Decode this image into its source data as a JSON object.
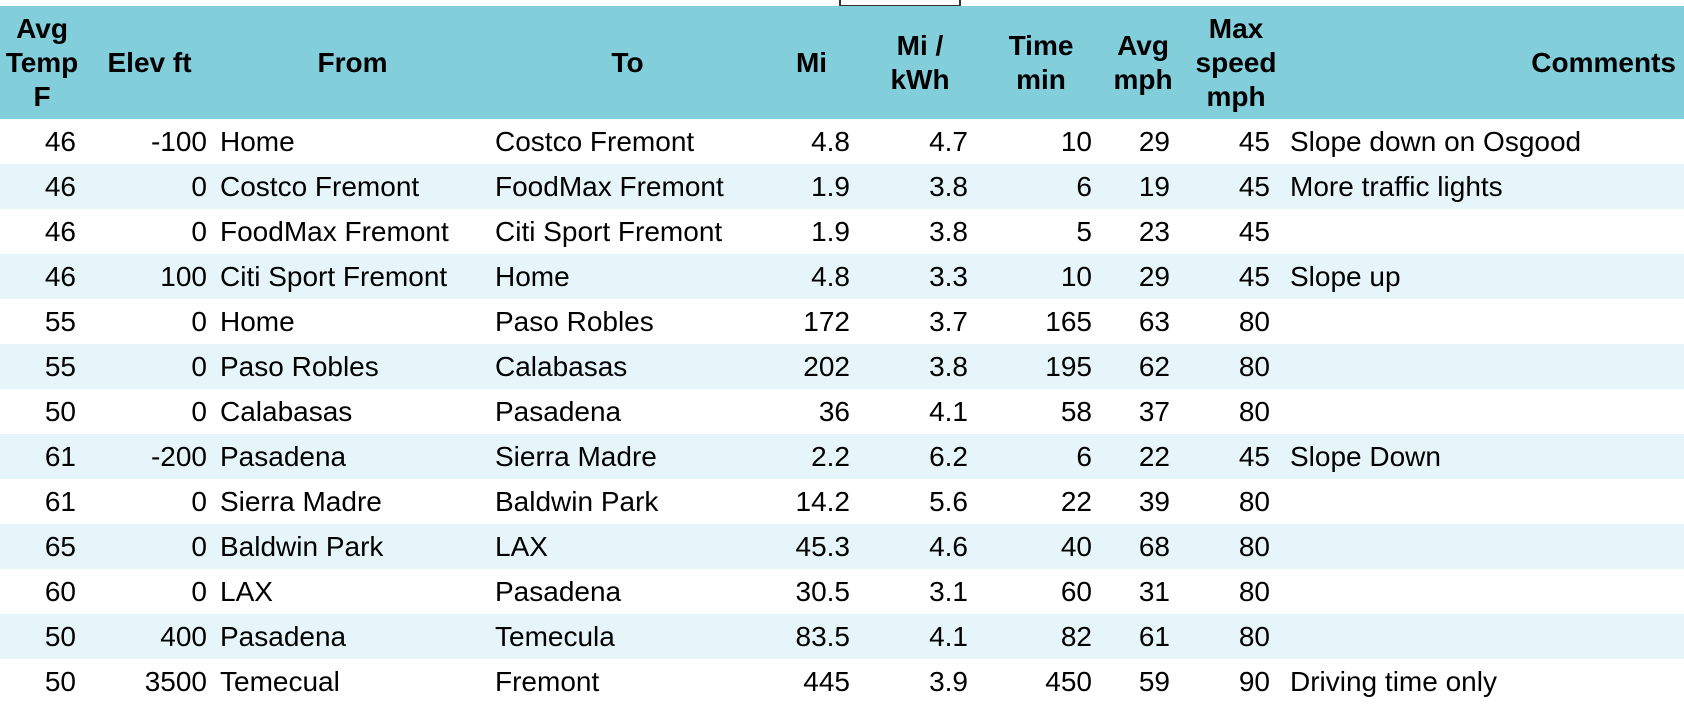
{
  "table": {
    "headers": {
      "avg_temp": "Avg\nTemp\nF",
      "elev": "Elev ft",
      "from": "From",
      "to": "To",
      "mi": "Mi",
      "mi_kwh": "Mi /\nkWh",
      "time": "Time\nmin",
      "avg_mph": "Avg\nmph",
      "max_speed": "Max\nspeed\nmph",
      "comments": "Comments"
    },
    "rows": [
      {
        "temp": "46",
        "elev": "-100",
        "from": "Home",
        "to": "Costco Fremont",
        "mi": "4.8",
        "mpk": "4.7",
        "time": "10",
        "avg": "29",
        "max": "45",
        "comment": "Slope down on Osgood"
      },
      {
        "temp": "46",
        "elev": "0",
        "from": "Costco Fremont",
        "to": "FoodMax Fremont",
        "mi": "1.9",
        "mpk": "3.8",
        "time": "6",
        "avg": "19",
        "max": "45",
        "comment": "More traffic lights"
      },
      {
        "temp": "46",
        "elev": "0",
        "from": "FoodMax Fremont",
        "to": "Citi Sport Fremont",
        "mi": "1.9",
        "mpk": "3.8",
        "time": "5",
        "avg": "23",
        "max": "45",
        "comment": ""
      },
      {
        "temp": "46",
        "elev": "100",
        "from": "Citi Sport Fremont",
        "to": "Home",
        "mi": "4.8",
        "mpk": "3.3",
        "time": "10",
        "avg": "29",
        "max": "45",
        "comment": "Slope up"
      },
      {
        "temp": "55",
        "elev": "0",
        "from": "Home",
        "to": "Paso Robles",
        "mi": "172",
        "mpk": "3.7",
        "time": "165",
        "avg": "63",
        "max": "80",
        "comment": ""
      },
      {
        "temp": "55",
        "elev": "0",
        "from": "Paso Robles",
        "to": "Calabasas",
        "mi": "202",
        "mpk": "3.8",
        "time": "195",
        "avg": "62",
        "max": "80",
        "comment": ""
      },
      {
        "temp": "50",
        "elev": "0",
        "from": "Calabasas",
        "to": "Pasadena",
        "mi": "36",
        "mpk": "4.1",
        "time": "58",
        "avg": "37",
        "max": "80",
        "comment": ""
      },
      {
        "temp": "61",
        "elev": "-200",
        "from": "Pasadena",
        "to": "Sierra Madre",
        "mi": "2.2",
        "mpk": "6.2",
        "time": "6",
        "avg": "22",
        "max": "45",
        "comment": "Slope Down"
      },
      {
        "temp": "61",
        "elev": "0",
        "from": "Sierra Madre",
        "to": "Baldwin Park",
        "mi": "14.2",
        "mpk": "5.6",
        "time": "22",
        "avg": "39",
        "max": "80",
        "comment": ""
      },
      {
        "temp": "65",
        "elev": "0",
        "from": "Baldwin Park",
        "to": "LAX",
        "mi": "45.3",
        "mpk": "4.6",
        "time": "40",
        "avg": "68",
        "max": "80",
        "comment": ""
      },
      {
        "temp": "60",
        "elev": "0",
        "from": "LAX",
        "to": "Pasadena",
        "mi": "30.5",
        "mpk": "3.1",
        "time": "60",
        "avg": "31",
        "max": "80",
        "comment": ""
      },
      {
        "temp": "50",
        "elev": "400",
        "from": "Pasadena",
        "to": "Temecula",
        "mi": "83.5",
        "mpk": "4.1",
        "time": "82",
        "avg": "61",
        "max": "80",
        "comment": ""
      },
      {
        "temp": "50",
        "elev": "3500",
        "from": "Temecual",
        "to": "Fremont",
        "mi": "445",
        "mpk": "3.9",
        "time": "450",
        "avg": "59",
        "max": "90",
        "comment": "Driving time only"
      }
    ]
  },
  "colors": {
    "header_bg": "#82cedb",
    "row_alt_bg": "#e6f5f9",
    "row_bg": "#ffffff"
  }
}
